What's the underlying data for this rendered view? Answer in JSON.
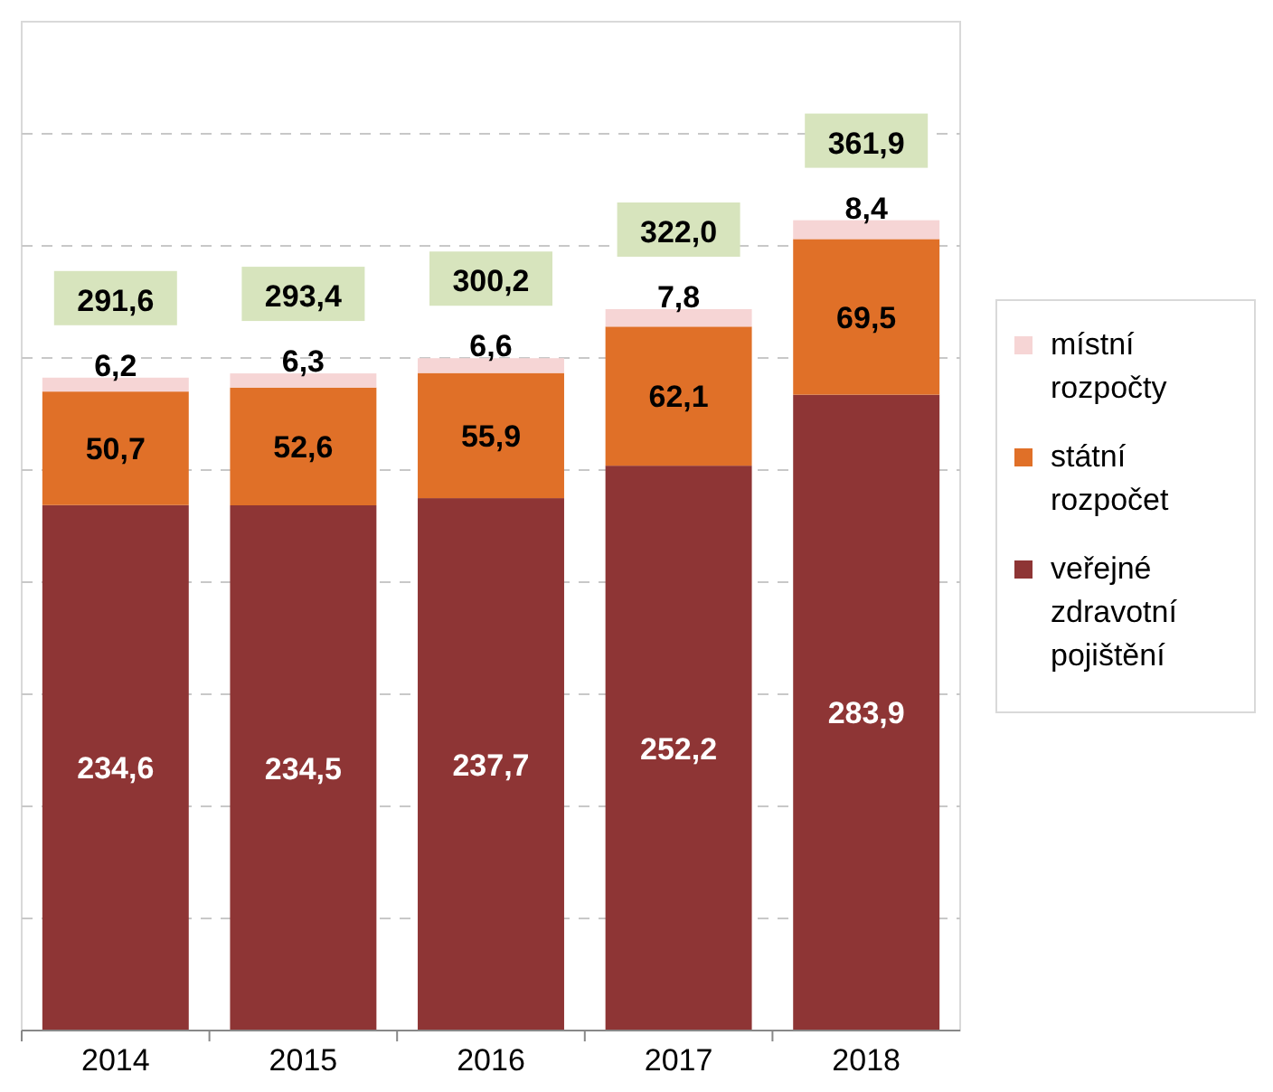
{
  "chart_data": {
    "type": "bar",
    "stacked": true,
    "categories": [
      "2014",
      "2015",
      "2016",
      "2017",
      "2018"
    ],
    "series": [
      {
        "name": "veřejné zdravotní pojištění",
        "color": "#8e3535",
        "values": [
          234.6,
          234.5,
          237.7,
          252.2,
          283.9
        ],
        "value_labels": [
          "234,6",
          "234,5",
          "237,7",
          "252,2",
          "283,9"
        ]
      },
      {
        "name": "státní rozpočet",
        "color": "#e07028",
        "values": [
          50.7,
          52.6,
          55.9,
          62.1,
          69.5
        ],
        "value_labels": [
          "50,7",
          "52,6",
          "55,9",
          "62,1",
          "69,5"
        ]
      },
      {
        "name": "místní rozpočty",
        "color": "#f6d5d5",
        "values": [
          6.2,
          6.3,
          6.6,
          7.8,
          8.4
        ],
        "value_labels": [
          "6,2",
          "6,3",
          "6,6",
          "7,8",
          "8,4"
        ]
      }
    ],
    "totals": [
      "291,6",
      "293,4",
      "300,2",
      "322,0",
      "361,9"
    ],
    "tick_labels": "x",
    "grid": "y",
    "legend": "right"
  }
}
